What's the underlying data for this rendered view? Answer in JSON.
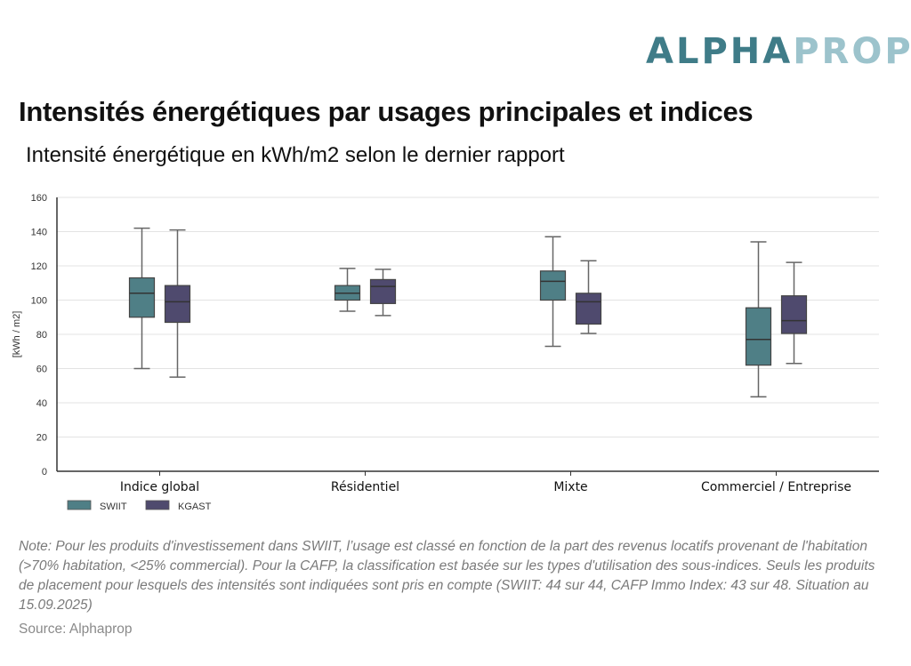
{
  "logo": {
    "part1": "ALPHA",
    "part2": "PROP"
  },
  "title": "Intensités énergétiques par usages principales et indices",
  "subtitle": "Intensité énergétique en kWh/m2 selon le dernier rapport",
  "note": "Note: Pour les produits d'investissement dans SWIIT, l’usage est classé en fonction de la part des revenus locatifs provenant de l'habitation (>70% habitation, <25% commercial). Pour la CAFP, la classification est basée sur les types d'utilisation des sous-indices. Seuls les produits de placement pour lesquels des intensités sont indiquées sont pris en compte (SWIIT: 44 sur 44, CAFP Immo Index: 43 sur 48. Situation au 15.09.2025)",
  "source": "Source: Alphaprop",
  "colors": {
    "SWIIT": "#4f7f86",
    "KGAST": "#4f4a6e",
    "logo_dark": "#3f7c88",
    "logo_light": "#9cc3cc"
  },
  "chart_data": {
    "type": "boxplot",
    "title": "Intensités énergétiques par usages principales et indices",
    "subtitle": "Intensité énergétique en kWh/m2 selon le dernier rapport",
    "xlabel": "",
    "ylabel": "[kWh / m2]",
    "ylim": [
      0,
      160
    ],
    "yticks": [
      0,
      20,
      40,
      60,
      80,
      100,
      120,
      140,
      160
    ],
    "grid": true,
    "legend": {
      "placement": "bottom-left",
      "entries": [
        "SWIIT",
        "KGAST"
      ]
    },
    "categories": [
      "Indice global",
      "Résidentiel",
      "Mixte",
      "Commerciel / Entreprise"
    ],
    "series": [
      {
        "name": "SWIIT",
        "boxes": [
          {
            "min": 60,
            "q1": 90,
            "median": 104,
            "q3": 113,
            "max": 142
          },
          {
            "min": 93.5,
            "q1": 100,
            "median": 104,
            "q3": 108.5,
            "max": 118.5
          },
          {
            "min": 73,
            "q1": 100,
            "median": 111,
            "q3": 117,
            "max": 137
          },
          {
            "min": 43.5,
            "q1": 62,
            "median": 77,
            "q3": 95.5,
            "max": 134
          }
        ]
      },
      {
        "name": "KGAST",
        "boxes": [
          {
            "min": 55,
            "q1": 87,
            "median": 99,
            "q3": 108.5,
            "max": 141
          },
          {
            "min": 91,
            "q1": 98,
            "median": 108,
            "q3": 112,
            "max": 118
          },
          {
            "min": 80.5,
            "q1": 86,
            "median": 99,
            "q3": 104,
            "max": 123
          },
          {
            "min": 63,
            "q1": 80.5,
            "median": 88,
            "q3": 102.5,
            "max": 122
          }
        ]
      }
    ]
  }
}
